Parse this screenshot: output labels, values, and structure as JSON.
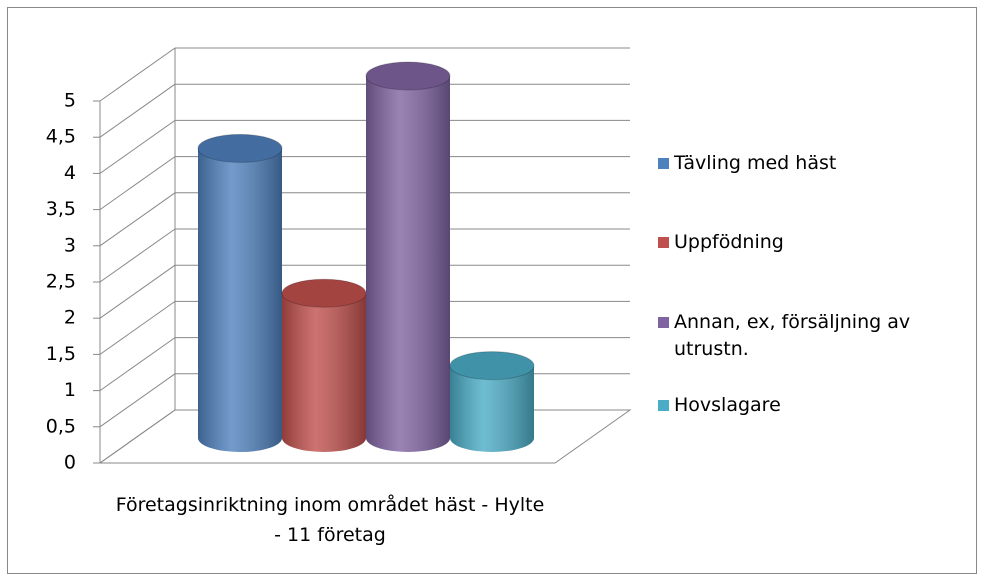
{
  "chart_data": {
    "type": "bar3d",
    "categories": [
      "Företagsinriktning inom området häst - Hylte - 11 företag"
    ],
    "series": [
      {
        "name": "Tävling med häst",
        "color": "#4f81bd",
        "values": [
          4
        ]
      },
      {
        "name": "Uppfödning",
        "color": "#c0504d",
        "values": [
          2
        ]
      },
      {
        "name": "Annan, ex, försäljning av utrustn.",
        "color": "#8064a2",
        "values": [
          5
        ]
      },
      {
        "name": "Hovslagare",
        "color": "#4bacc6",
        "values": [
          1
        ]
      }
    ],
    "ylim": [
      0,
      5
    ],
    "yticks": [
      0,
      {
        "value": 0.5,
        "label": "0,5"
      },
      1,
      {
        "value": 1.5,
        "label": "1,5"
      },
      2,
      {
        "value": 2.5,
        "label": "2,5"
      },
      3,
      {
        "value": 3.5,
        "label": "3,5"
      },
      4,
      {
        "value": 4.5,
        "label": "4,5"
      },
      5
    ],
    "grid": true,
    "legend": "right"
  }
}
